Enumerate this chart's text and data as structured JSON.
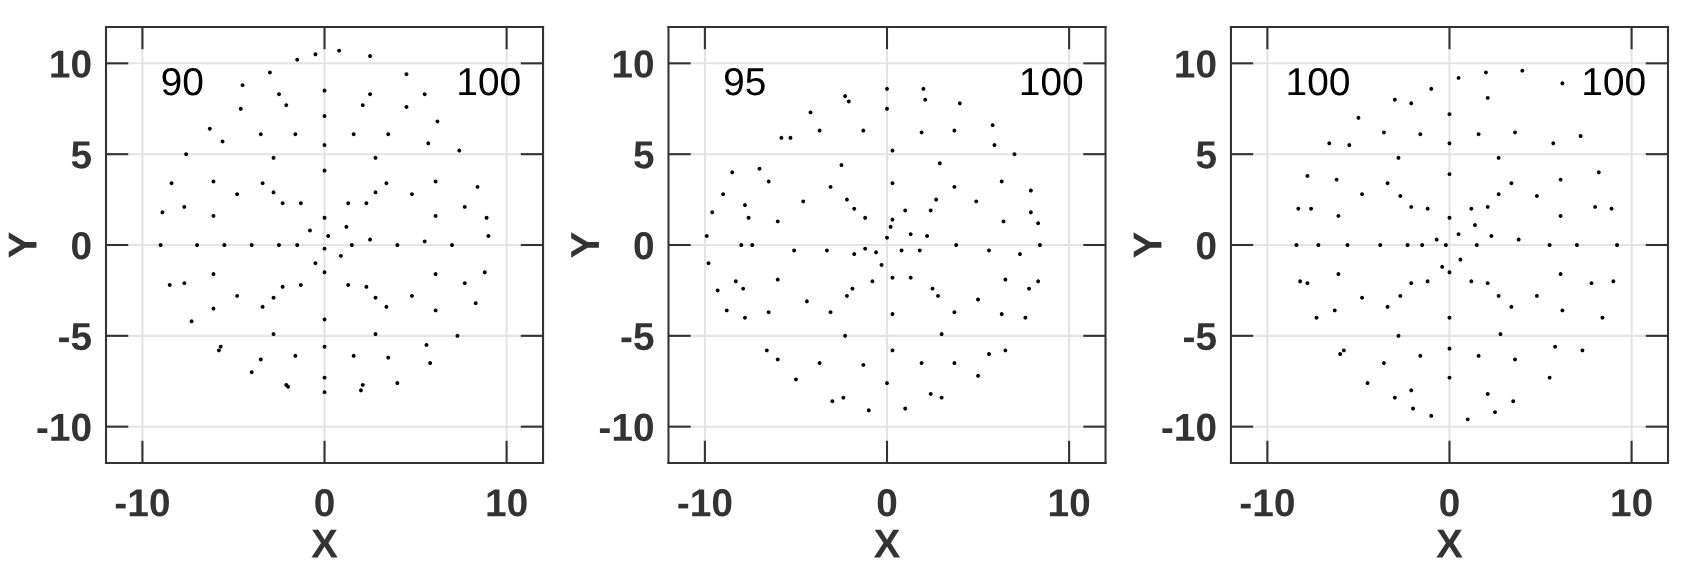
{
  "chart_data": [
    {
      "type": "scatter",
      "xlabel": "X",
      "ylabel": "Y",
      "xlim": [
        -12,
        12
      ],
      "ylim": [
        -12,
        12
      ],
      "xticks": [
        -10,
        0,
        10
      ],
      "yticks": [
        -10,
        -5,
        0,
        5,
        10
      ],
      "grid": true,
      "marker": "circle",
      "annotations": [
        "90",
        "100"
      ],
      "series": [
        {
          "color": "#000000",
          "x": [
            9.0,
            8.8,
            8.3,
            7.3,
            5.8,
            4.0,
            2.0,
            0.0,
            -2.0,
            -4.0,
            -5.8,
            -7.3,
            -8.5,
            -9.0,
            -8.9,
            -8.4,
            -7.6,
            -6.3,
            -4.6,
            -2.5,
            0.0,
            2.5,
            4.5,
            6.2,
            7.4,
            8.4,
            8.9,
            -4.5,
            -3.0,
            -1.5,
            -0.5,
            0.8,
            2.5,
            4.5,
            5.5,
            7.0,
            6.1,
            3.5,
            0.0,
            -3.5,
            -6.1,
            -7.0,
            -6.1,
            -3.5,
            0.0,
            3.5,
            6.1,
            5.5,
            4.8,
            2.8,
            0.0,
            -2.8,
            -4.8,
            -5.5,
            -4.8,
            -2.8,
            0.0,
            2.8,
            4.8,
            4.0,
            2.8,
            0.0,
            -2.8,
            -4.0,
            -2.8,
            0.0,
            2.8,
            2.5,
            1.3,
            -1.3,
            -2.5,
            -1.3,
            1.3,
            0.2,
            -0.8,
            0.9,
            -0.5,
            1.2,
            0.0,
            7.7,
            2.1,
            -2.1,
            -7.7,
            -7.7,
            -2.1,
            2.1,
            7.7,
            5.7,
            -5.6,
            -5.7,
            5.6,
            6.1,
            1.6,
            -1.6,
            -6.1,
            -6.1,
            -1.6,
            1.6,
            6.1,
            3.4,
            -3.4,
            -3.4,
            3.4,
            2.3,
            -2.3,
            -2.3,
            2.3,
            1.5,
            0.0,
            -1.5,
            0.0
          ],
          "values": [
            0.5,
            -1.5,
            -3.2,
            -5.0,
            -6.5,
            -7.6,
            -8.0,
            -8.1,
            -7.8,
            -7.0,
            -5.8,
            -4.2,
            -2.2,
            0.0,
            1.8,
            3.4,
            5.0,
            6.4,
            7.5,
            8.3,
            8.5,
            8.3,
            7.6,
            6.8,
            5.2,
            3.2,
            1.5,
            8.8,
            9.5,
            10.2,
            10.5,
            10.7,
            10.4,
            9.4,
            8.3,
            0.0,
            3.5,
            6.1,
            7.1,
            6.1,
            3.5,
            0.0,
            -3.5,
            -6.3,
            -7.3,
            -6.2,
            -3.6,
            0.2,
            2.8,
            4.8,
            5.5,
            4.8,
            2.8,
            0.0,
            -2.8,
            -4.9,
            -5.6,
            -4.9,
            -2.8,
            0.0,
            2.9,
            4.1,
            2.9,
            0.0,
            -2.9,
            -4.1,
            -2.9,
            0.3,
            2.3,
            2.3,
            0.0,
            -2.2,
            -2.2,
            0.5,
            0.8,
            -0.6,
            -1.0,
            1.0,
            -0.2,
            2.1,
            7.7,
            7.7,
            2.1,
            -2.1,
            -7.7,
            -7.7,
            -2.1,
            5.6,
            5.7,
            -5.6,
            -5.5,
            1.6,
            6.1,
            6.1,
            1.6,
            -1.6,
            -6.1,
            -6.1,
            -1.6,
            3.4,
            3.4,
            -3.4,
            -3.4,
            2.3,
            2.3,
            -2.3,
            -2.3,
            0.0,
            1.5,
            0.0,
            -1.5
          ]
        }
      ]
    },
    {
      "type": "scatter",
      "xlabel": "X",
      "ylabel": "Y",
      "xlim": [
        -12,
        12
      ],
      "ylim": [
        -12,
        12
      ],
      "xticks": [
        -10,
        0,
        10
      ],
      "yticks": [
        -10,
        -5,
        0,
        5,
        10
      ],
      "grid": true,
      "marker": "circle",
      "annotations": [
        "95",
        "100"
      ],
      "series": [
        {
          "color": "#000000",
          "x": [
            8.4,
            8.3,
            7.6,
            6.5,
            5.0,
            3.0,
            1.0,
            -1.0,
            -3.0,
            -5.0,
            -6.6,
            -7.8,
            -8.3,
            -8.0,
            -7.8,
            -7.0,
            -5.8,
            -4.2,
            -2.3,
            0.0,
            2.0,
            4.0,
            5.8,
            7.0,
            7.9,
            8.3,
            -9.9,
            -9.8,
            -9.6,
            -9.3,
            -9.0,
            -8.8,
            -8.5,
            7.3,
            6.3,
            3.7,
            0.0,
            -3.7,
            -6.5,
            -7.4,
            -6.5,
            -3.7,
            0.0,
            3.7,
            6.3,
            5.6,
            4.9,
            2.9,
            0.3,
            -2.5,
            -4.6,
            -5.1,
            -4.4,
            -2.3,
            0.3,
            3.0,
            5.0,
            3.8,
            2.7,
            0.3,
            -2.2,
            -3.3,
            -2.2,
            0.3,
            2.8,
            2.2,
            1.0,
            -1.2,
            -1.8,
            -0.8,
            1.3,
            0.0,
            -0.6,
            0.8,
            0.2,
            -0.3,
            1.3,
            7.9,
            2.1,
            -2.1,
            -7.6,
            -7.9,
            -2.4,
            2.4,
            7.8,
            5.9,
            -5.3,
            -6.0,
            5.6,
            6.4,
            1.9,
            -1.3,
            -6.0,
            -6.0,
            -1.3,
            1.9,
            6.5,
            3.7,
            -3.1,
            -3.1,
            3.7,
            2.4,
            -1.8,
            -1.9,
            2.5,
            1.8,
            0.3,
            -1.2,
            0.3
          ],
          "values": [
            0.0,
            -2.0,
            -4.0,
            -5.8,
            -7.2,
            -8.4,
            -9.0,
            -9.1,
            -8.6,
            -7.4,
            -5.8,
            -4.0,
            -2.0,
            0.0,
            2.2,
            4.2,
            5.9,
            7.3,
            8.2,
            8.6,
            8.6,
            7.8,
            6.6,
            5.0,
            3.0,
            1.2,
            0.5,
            -1.0,
            1.8,
            -2.5,
            2.8,
            -3.6,
            4.0,
            -0.5,
            3.5,
            6.3,
            7.5,
            6.3,
            3.5,
            0.0,
            -3.7,
            -6.5,
            -7.6,
            -6.5,
            -3.8,
            -0.3,
            2.4,
            4.5,
            5.2,
            4.4,
            2.4,
            -0.3,
            -3.1,
            -5.0,
            -5.8,
            -4.9,
            -3.0,
            0.0,
            2.5,
            3.4,
            2.5,
            -0.3,
            -2.8,
            -3.8,
            -2.8,
            0.5,
            1.9,
            1.5,
            -0.5,
            -2.0,
            -1.8,
            0.4,
            -0.4,
            -0.3,
            1.0,
            -1.1,
            0.6,
            1.8,
            8.0,
            7.9,
            1.5,
            -2.4,
            -8.4,
            -8.2,
            -2.4,
            5.5,
            5.9,
            -6.3,
            -6.0,
            1.3,
            6.2,
            6.3,
            1.3,
            -1.9,
            -6.6,
            -6.5,
            -1.9,
            3.2,
            3.2,
            -3.7,
            -3.7,
            1.9,
            2.0,
            -2.4,
            -2.4,
            -0.3,
            1.4,
            -0.2,
            -1.8
          ]
        }
      ]
    },
    {
      "type": "scatter",
      "xlabel": "X",
      "ylabel": "Y",
      "xlim": [
        -12,
        12
      ],
      "ylim": [
        -12,
        12
      ],
      "xticks": [
        -10,
        0,
        10
      ],
      "yticks": [
        -10,
        -5,
        0,
        5,
        10
      ],
      "grid": true,
      "marker": "circle",
      "annotations": [
        "100",
        "100"
      ],
      "series": [
        {
          "color": "#000000",
          "x": [
            9.2,
            9.0,
            8.4,
            7.3,
            5.5,
            3.5,
            1.0,
            -1.0,
            -3.0,
            -4.5,
            -6.0,
            -7.3,
            -8.2,
            -8.4,
            -8.3,
            -7.8,
            -6.6,
            -5.0,
            -3.0,
            -1.0,
            0.5,
            2.0,
            4.0,
            6.2,
            7.2,
            8.2,
            8.9,
            7.0,
            6.1,
            3.6,
            0.0,
            -3.6,
            -6.2,
            -7.2,
            -6.3,
            -3.6,
            0.0,
            3.6,
            6.2,
            5.5,
            4.8,
            2.7,
            0.0,
            -2.8,
            -4.8,
            -5.6,
            -4.8,
            -2.8,
            0.0,
            2.8,
            4.8,
            3.8,
            2.7,
            0.0,
            -2.7,
            -3.8,
            -2.7,
            0.0,
            2.7,
            2.3,
            1.2,
            -1.2,
            -2.3,
            -1.2,
            1.2,
            0.5,
            -0.7,
            0.6,
            -0.4,
            1.4,
            -0.2,
            8.0,
            2.1,
            -2.1,
            -7.6,
            -7.8,
            -2.1,
            2.1,
            7.8,
            5.7,
            -5.5,
            -5.8,
            5.8,
            6.1,
            1.6,
            -1.6,
            -6.1,
            -6.1,
            -1.6,
            1.6,
            6.1,
            3.4,
            -3.4,
            -3.4,
            3.4,
            2.1,
            -2.1,
            -2.1,
            2.1,
            1.5,
            0.0,
            -1.5,
            0.0,
            -2.0,
            2.5
          ],
          "values": [
            0.0,
            -2.0,
            -4.0,
            -5.8,
            -7.3,
            -8.6,
            -9.6,
            -9.4,
            -8.4,
            -7.6,
            -6.0,
            -4.0,
            -2.0,
            0.0,
            2.0,
            3.8,
            5.6,
            7.0,
            8.0,
            8.6,
            9.2,
            9.5,
            9.6,
            8.9,
            6.0,
            4.0,
            2.0,
            0.0,
            3.6,
            6.2,
            7.2,
            6.2,
            3.6,
            0.0,
            -3.6,
            -6.5,
            -7.3,
            -6.3,
            -3.6,
            0.0,
            2.7,
            4.8,
            5.6,
            4.8,
            2.8,
            0.0,
            -2.9,
            -5.0,
            -5.7,
            -4.9,
            -2.8,
            0.3,
            2.8,
            3.9,
            2.7,
            0.0,
            -2.8,
            -4.0,
            -2.8,
            0.5,
            2.0,
            2.0,
            0.0,
            -2.0,
            -2.0,
            0.6,
            0.3,
            -0.8,
            -1.2,
            1.1,
            0.0,
            2.1,
            8.1,
            7.8,
            2.0,
            -2.1,
            -8.0,
            -8.2,
            -2.1,
            5.6,
            5.5,
            -5.8,
            -5.6,
            1.6,
            6.1,
            6.1,
            1.6,
            -1.6,
            -6.1,
            -6.1,
            -1.6,
            3.4,
            3.4,
            -3.4,
            -3.4,
            2.1,
            2.1,
            -2.1,
            -2.1,
            0.0,
            1.5,
            0.0,
            -1.5,
            -9.0,
            -9.2
          ]
        }
      ]
    }
  ]
}
